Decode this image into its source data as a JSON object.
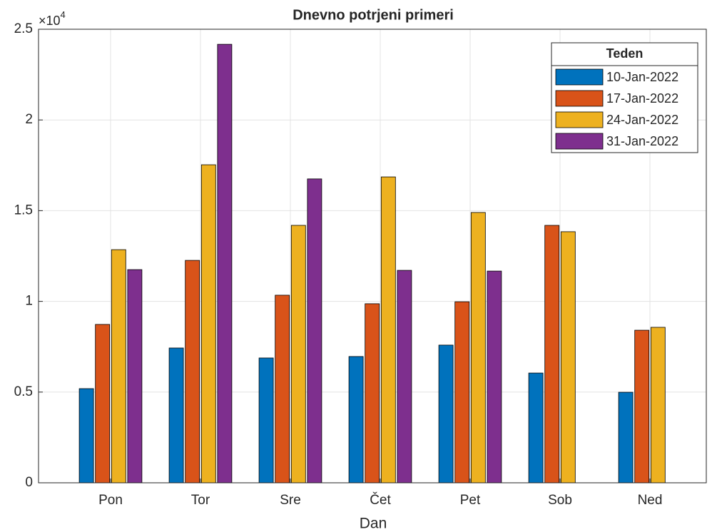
{
  "chart_data": {
    "type": "bar",
    "title": "Dnevno potrjeni primeri",
    "x_label": "Dan",
    "y_exponent_base": "×10",
    "y_exponent_power": "4",
    "categories": [
      "Pon",
      "Tor",
      "Sre",
      "Čet",
      "Pet",
      "Sob",
      "Ned"
    ],
    "legend_title": "Teden",
    "legend_position": "northeast",
    "grid": true,
    "ylim": [
      0,
      25000
    ],
    "yticks": [
      0,
      {
        "value": 5000,
        "label": "0.5"
      },
      {
        "value": 10000,
        "label": "1"
      },
      {
        "value": 15000,
        "label": "1.5"
      },
      {
        "value": 20000,
        "label": "2"
      },
      {
        "value": 25000,
        "label": "2.5"
      }
    ],
    "series": [
      {
        "name": "10-Jan-2022",
        "color": "#0072bd",
        "values": [
          5190,
          7430,
          6880,
          6960,
          7590,
          6050,
          4990
        ]
      },
      {
        "name": "17-Jan-2022",
        "color": "#d95319",
        "values": [
          8730,
          12260,
          10340,
          9870,
          9980,
          14190,
          8410
        ]
      },
      {
        "name": "24-Jan-2022",
        "color": "#edb120",
        "values": [
          12850,
          17530,
          14190,
          16860,
          14900,
          13840,
          8570
        ]
      },
      {
        "name": "31-Jan-2022",
        "color": "#7e2f8e",
        "values": [
          11750,
          24170,
          16750,
          11710,
          11670,
          null,
          null
        ]
      }
    ]
  }
}
